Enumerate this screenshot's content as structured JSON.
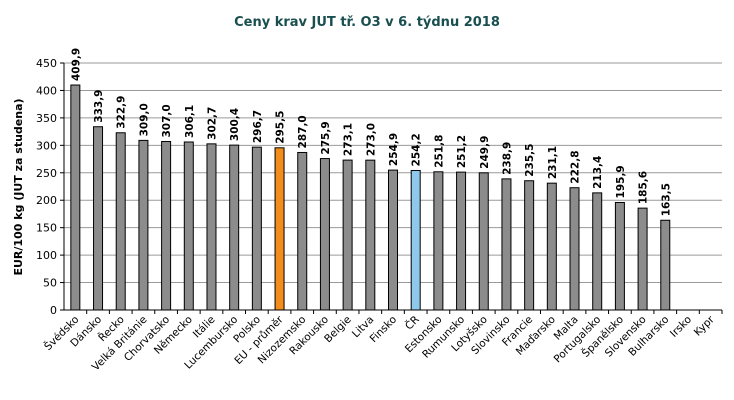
{
  "chart_data": {
    "type": "bar",
    "title": "Ceny krav JUT  tř. O3  v 6. týdnu 2018",
    "ylabel": "EUR/100 kg (JUT za studena)",
    "xlabel": "",
    "ylim": [
      0,
      450
    ],
    "yticks": [
      0,
      50,
      100,
      150,
      200,
      250,
      300,
      350,
      400,
      450
    ],
    "grid": "horizontal",
    "categories": [
      "Švédsko",
      "Dánsko",
      "Řecko",
      "Velká Británie",
      "Chorvatsko",
      "Německo",
      "Itálie",
      "Lucembursko",
      "Polsko",
      "EU - průměr",
      "Nizozemsko",
      "Rakousko",
      "Belgie",
      "Litva",
      "Finsko",
      "ČR",
      "Estonsko",
      "Rumunsko",
      "Lotyšsko",
      "Slovinsko",
      "Francie",
      "Maďarsko",
      "Malta",
      "Portugalsko",
      "Španělsko",
      "Slovensko",
      "Bulharsko",
      "Irsko",
      "Kypr"
    ],
    "values": [
      409.9,
      333.9,
      322.9,
      309.0,
      307.0,
      306.1,
      302.7,
      300.4,
      296.7,
      295.5,
      287.0,
      275.9,
      273.1,
      273.0,
      254.9,
      254.2,
      251.8,
      251.2,
      249.9,
      238.9,
      235.5,
      231.1,
      222.8,
      213.4,
      195.9,
      185.6,
      163.5,
      null,
      null
    ],
    "value_labels": [
      "409,9",
      "333,9",
      "322,9",
      "309,0",
      "307,0",
      "306,1",
      "302,7",
      "300,4",
      "296,7",
      "295,5",
      "287,0",
      "275,9",
      "273,1",
      "273,0",
      "254,9",
      "254,2",
      "251,8",
      "251,2",
      "249,9",
      "238,9",
      "235,5",
      "231,1",
      "222,8",
      "213,4",
      "195,9",
      "185,6",
      "163,5",
      "",
      ""
    ],
    "colors": {
      "default": "#8c8c8c",
      "eu_average": "#f28c1c",
      "cr": "#8ec8ea",
      "gridline": "#9a9a9a",
      "title": "#1a4f4f"
    },
    "highlight": {
      "EU - průměr": "eu_average",
      "ČR": "cr"
    }
  }
}
